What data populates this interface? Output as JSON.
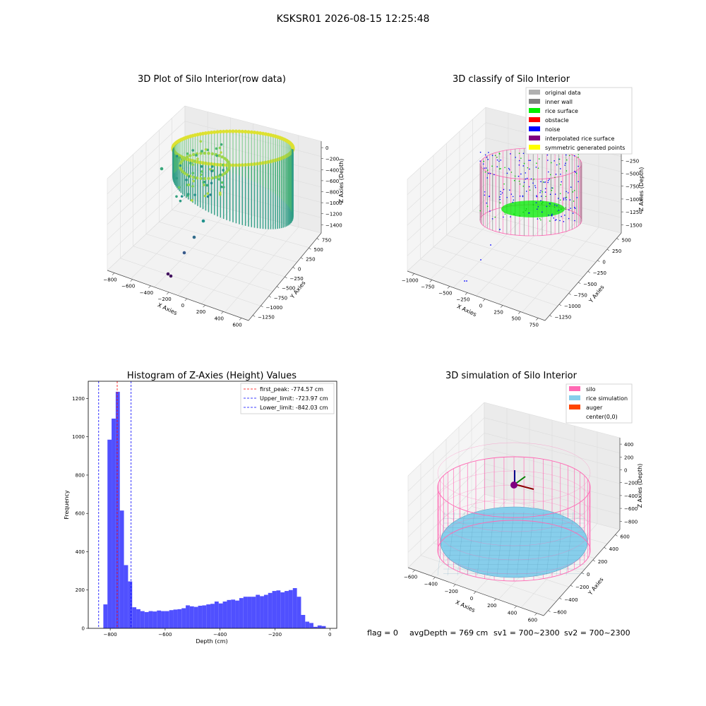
{
  "suptitle": "KSKSR01 2026-08-15 12:25:48",
  "chart_data": [
    {
      "type": "scatter",
      "projection": "3d",
      "title": "3D Plot of Silo Interior(row data)",
      "xlabel": "X Axies",
      "ylabel": "Y Axies",
      "zlabel": "Z Axies (Depth)",
      "x_ticks": [
        "−800",
        "−600",
        "−400",
        "−200",
        "0",
        "200",
        "400",
        "600"
      ],
      "y_ticks": [
        "750",
        "500",
        "250",
        "0",
        "−250",
        "−500",
        "−750",
        "−1000",
        "−1250"
      ],
      "z_ticks": [
        "0",
        "−200",
        "−400",
        "−600",
        "−800",
        "−1000",
        "−1200",
        "−1400"
      ],
      "colormap": "viridis",
      "grid": true
    },
    {
      "type": "scatter",
      "projection": "3d",
      "title": "3D classify of Silo Interior",
      "xlabel": "X Axies",
      "ylabel": "Y Axies",
      "zlabel": "Z Axies (Depth)",
      "x_ticks": [
        "−1000",
        "−750",
        "−500",
        "−250",
        "0",
        "250",
        "500",
        "750"
      ],
      "y_ticks": [
        "500",
        "250",
        "0",
        "−250",
        "−500",
        "−750",
        "−1000",
        "−1250"
      ],
      "z_ticks": [
        "0",
        "−250",
        "−500",
        "−750",
        "−1000",
        "−1250",
        "−1500"
      ],
      "legend_position": "top-right",
      "legend": [
        {
          "name": "original data",
          "color": "#b0b0b0"
        },
        {
          "name": "inner wall",
          "color": "#808080"
        },
        {
          "name": "rice surface",
          "color": "#00ee00"
        },
        {
          "name": "obstacle",
          "color": "#ff0000"
        },
        {
          "name": "noise",
          "color": "#0000ff"
        },
        {
          "name": "interpolated rice surface",
          "color": "#800080"
        },
        {
          "name": "symmetric generated points",
          "color": "#ffff00"
        }
      ],
      "grid": true
    },
    {
      "type": "histogram",
      "title": "Histogram of Z-Axies (Height) Values",
      "xlabel": "Depth (cm)",
      "ylabel": "Frequency",
      "xlim": [
        -880,
        25
      ],
      "ylim": [
        0,
        1290
      ],
      "x_ticks": [
        -800,
        -600,
        -400,
        -200,
        0
      ],
      "x_tick_labels": [
        "−800",
        "−600",
        "−400",
        "−200",
        "0"
      ],
      "y_ticks": [
        0,
        200,
        400,
        600,
        800,
        1000,
        1200
      ],
      "bar_color": "#5050ff",
      "bins": [
        {
          "x0": -825,
          "x1": -810,
          "value": 125
        },
        {
          "x0": -810,
          "x1": -795,
          "value": 985
        },
        {
          "x0": -795,
          "x1": -780,
          "value": 1095
        },
        {
          "x0": -780,
          "x1": -765,
          "value": 1235
        },
        {
          "x0": -765,
          "x1": -750,
          "value": 615
        },
        {
          "x0": -750,
          "x1": -735,
          "value": 330
        },
        {
          "x0": -735,
          "x1": -720,
          "value": 245
        },
        {
          "x0": -720,
          "x1": -705,
          "value": 110
        },
        {
          "x0": -705,
          "x1": -690,
          "value": 100
        },
        {
          "x0": -690,
          "x1": -675,
          "value": 90
        },
        {
          "x0": -675,
          "x1": -660,
          "value": 85
        },
        {
          "x0": -660,
          "x1": -645,
          "value": 90
        },
        {
          "x0": -645,
          "x1": -630,
          "value": 88
        },
        {
          "x0": -630,
          "x1": -615,
          "value": 93
        },
        {
          "x0": -615,
          "x1": -600,
          "value": 90
        },
        {
          "x0": -600,
          "x1": -585,
          "value": 90
        },
        {
          "x0": -585,
          "x1": -570,
          "value": 95
        },
        {
          "x0": -570,
          "x1": -555,
          "value": 98
        },
        {
          "x0": -555,
          "x1": -540,
          "value": 100
        },
        {
          "x0": -540,
          "x1": -525,
          "value": 105
        },
        {
          "x0": -525,
          "x1": -510,
          "value": 120
        },
        {
          "x0": -510,
          "x1": -495,
          "value": 115
        },
        {
          "x0": -495,
          "x1": -480,
          "value": 112
        },
        {
          "x0": -480,
          "x1": -465,
          "value": 118
        },
        {
          "x0": -465,
          "x1": -450,
          "value": 120
        },
        {
          "x0": -450,
          "x1": -435,
          "value": 125
        },
        {
          "x0": -435,
          "x1": -420,
          "value": 128
        },
        {
          "x0": -420,
          "x1": -405,
          "value": 140
        },
        {
          "x0": -405,
          "x1": -390,
          "value": 130
        },
        {
          "x0": -390,
          "x1": -375,
          "value": 140
        },
        {
          "x0": -375,
          "x1": -360,
          "value": 148
        },
        {
          "x0": -360,
          "x1": -345,
          "value": 150
        },
        {
          "x0": -345,
          "x1": -330,
          "value": 145
        },
        {
          "x0": -330,
          "x1": -315,
          "value": 158
        },
        {
          "x0": -315,
          "x1": -300,
          "value": 165
        },
        {
          "x0": -300,
          "x1": -285,
          "value": 165
        },
        {
          "x0": -285,
          "x1": -270,
          "value": 165
        },
        {
          "x0": -270,
          "x1": -255,
          "value": 175
        },
        {
          "x0": -255,
          "x1": -240,
          "value": 168
        },
        {
          "x0": -240,
          "x1": -225,
          "value": 175
        },
        {
          "x0": -225,
          "x1": -210,
          "value": 185
        },
        {
          "x0": -210,
          "x1": -195,
          "value": 195
        },
        {
          "x0": -195,
          "x1": -180,
          "value": 198
        },
        {
          "x0": -180,
          "x1": -165,
          "value": 188
        },
        {
          "x0": -165,
          "x1": -150,
          "value": 195
        },
        {
          "x0": -150,
          "x1": -135,
          "value": 200
        },
        {
          "x0": -135,
          "x1": -120,
          "value": 210
        },
        {
          "x0": -120,
          "x1": -105,
          "value": 165
        },
        {
          "x0": -105,
          "x1": -90,
          "value": 70
        },
        {
          "x0": -90,
          "x1": -75,
          "value": 35
        },
        {
          "x0": -75,
          "x1": -60,
          "value": 28
        },
        {
          "x0": -60,
          "x1": -45,
          "value": 8
        },
        {
          "x0": -45,
          "x1": -30,
          "value": 15
        },
        {
          "x0": -30,
          "x1": -15,
          "value": 12
        }
      ],
      "vlines": [
        {
          "name": "first_peak: -774.57 cm",
          "x": -774.57,
          "color": "#ff0000"
        },
        {
          "name": "Upper_limit: -723.97 cm",
          "x": -723.97,
          "color": "#0000ff"
        },
        {
          "name": "Lower_limit: -842.03 cm",
          "x": -842.03,
          "color": "#0000ff"
        }
      ],
      "legend_position": "top-right"
    },
    {
      "type": "surface",
      "projection": "3d",
      "title": "3D simulation of Silo Interior",
      "xlabel": "X Axies",
      "ylabel": "Y Axies",
      "zlabel": "Z Axies (Depth)",
      "x_ticks": [
        "−600",
        "−400",
        "−200",
        "0",
        "200",
        "400",
        "600"
      ],
      "y_ticks": [
        "600",
        "400",
        "200",
        "0",
        "−200",
        "−400",
        "−600"
      ],
      "z_ticks": [
        "400",
        "200",
        "0",
        "−200",
        "−400",
        "−600",
        "−800"
      ],
      "legend_position": "top-right",
      "legend": [
        {
          "name": "silo",
          "color": "#ff69b4"
        },
        {
          "name": "rice simulation",
          "color": "#87ceeb"
        },
        {
          "name": "auger",
          "color": "#ff4500"
        },
        {
          "name": "center(0,0)",
          "color": ""
        }
      ],
      "grid": true
    }
  ],
  "footer": {
    "flag": "flag = 0",
    "avg_depth": "avgDepth = 769 cm",
    "sv1": "sv1 = 700~2300",
    "sv2": "sv2 = 700~2300"
  }
}
